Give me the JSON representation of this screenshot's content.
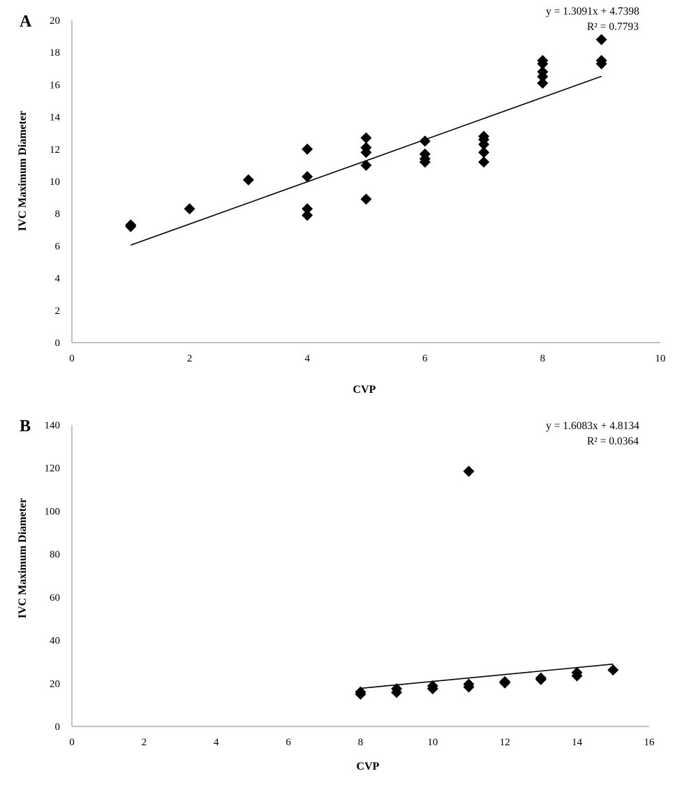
{
  "chart_data": [
    {
      "type": "scatter",
      "panel_label": "A",
      "xlabel": "CVP",
      "ylabel": "IVC Maximum Diameter",
      "xlim": [
        0,
        10
      ],
      "ylim": [
        0,
        20
      ],
      "x_ticks": [
        "0",
        "2",
        "4",
        "6",
        "8",
        "10"
      ],
      "y_ticks": [
        "0",
        "2",
        "4",
        "6",
        "8",
        "10",
        "12",
        "14",
        "16",
        "18",
        "20"
      ],
      "trendline": {
        "slope": 1.3091,
        "intercept": 4.7398,
        "x_range": [
          1,
          9
        ]
      },
      "equation_text": "y = 1.3091x + 4.7398",
      "r2_text": "R² = 0.7793",
      "points": [
        [
          1,
          7.3
        ],
        [
          1,
          7.2
        ],
        [
          2,
          8.3
        ],
        [
          3,
          10.1
        ],
        [
          4,
          12.0
        ],
        [
          4,
          10.3
        ],
        [
          4,
          8.3
        ],
        [
          4,
          7.9
        ],
        [
          5,
          12.7
        ],
        [
          5,
          12.1
        ],
        [
          5,
          11.8
        ],
        [
          5,
          11.0
        ],
        [
          5,
          8.9
        ],
        [
          6,
          12.5
        ],
        [
          6,
          11.7
        ],
        [
          6,
          11.4
        ],
        [
          6,
          11.2
        ],
        [
          7,
          12.8
        ],
        [
          7,
          12.6
        ],
        [
          7,
          12.3
        ],
        [
          7,
          11.8
        ],
        [
          7,
          11.2
        ],
        [
          8,
          17.5
        ],
        [
          8,
          17.3
        ],
        [
          8,
          16.8
        ],
        [
          8,
          16.5
        ],
        [
          8,
          16.1
        ],
        [
          9,
          18.8
        ],
        [
          9,
          17.5
        ],
        [
          9,
          17.3
        ]
      ]
    },
    {
      "type": "scatter",
      "panel_label": "B",
      "xlabel": "CVP",
      "ylabel": "IVC Maximum Diameter",
      "xlim": [
        0,
        16
      ],
      "ylim": [
        0,
        140
      ],
      "x_ticks": [
        "0",
        "2",
        "4",
        "6",
        "8",
        "10",
        "12",
        "14",
        "16"
      ],
      "y_ticks": [
        "0",
        "20",
        "40",
        "60",
        "80",
        "100",
        "120",
        "140"
      ],
      "trendline": {
        "slope": 1.6083,
        "intercept": 4.8134,
        "x_range": [
          8,
          15
        ]
      },
      "equation_text": "y = 1.6083x + 4.8134",
      "r2_text": "R² = 0.0364",
      "points": [
        [
          8,
          16.0
        ],
        [
          8,
          15.0
        ],
        [
          9,
          17.5
        ],
        [
          9,
          15.8
        ],
        [
          10,
          18.8
        ],
        [
          10,
          17.5
        ],
        [
          11,
          118.5
        ],
        [
          11,
          19.6
        ],
        [
          11,
          18.3
        ],
        [
          12,
          20.8
        ],
        [
          12,
          20.2
        ],
        [
          13,
          22.5
        ],
        [
          13,
          21.8
        ],
        [
          14,
          25.0
        ],
        [
          14,
          23.5
        ],
        [
          15,
          26.2
        ]
      ]
    }
  ]
}
